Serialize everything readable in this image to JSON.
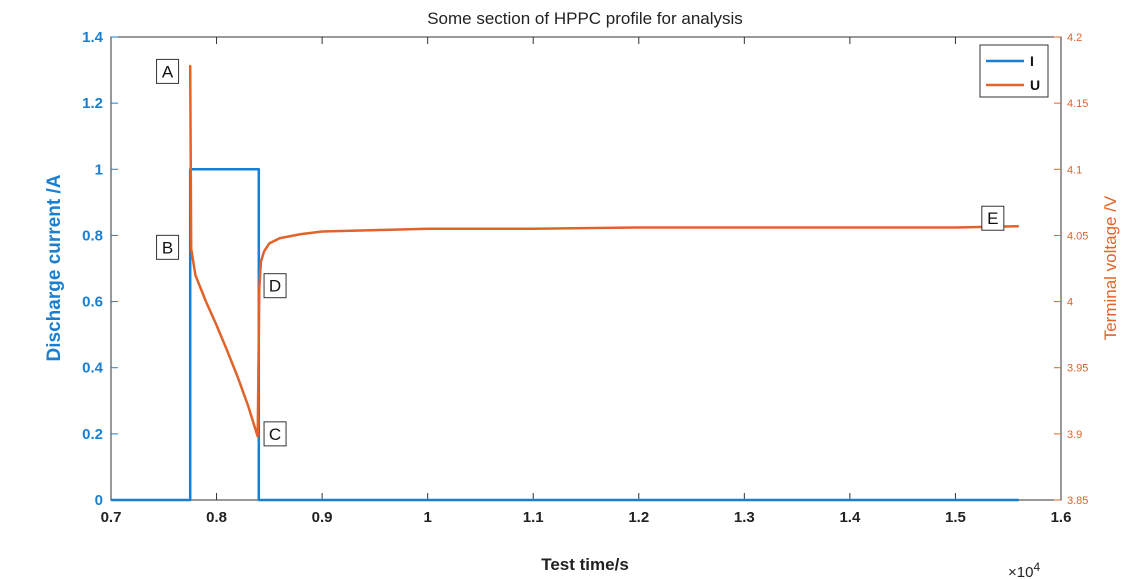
{
  "chart_data": {
    "type": "line",
    "title": "Some section of HPPC profile for analysis",
    "xlabel": "Test time/s",
    "x_multiplier": "×10",
    "x_multiplier_exp": "4",
    "xlim": [
      0.7,
      1.6
    ],
    "x_ticks": [
      "0.7",
      "0.8",
      "0.9",
      "1",
      "1.1",
      "1.2",
      "1.3",
      "1.4",
      "1.5",
      "1.6"
    ],
    "ylabel_left": "Discharge current /A",
    "ylim_left": [
      0,
      1.4
    ],
    "y_ticks_left": [
      "0",
      "0.2",
      "0.4",
      "0.6",
      "0.8",
      "1",
      "1.2",
      "1.4"
    ],
    "ylabel_right": "Terminal voltage /V",
    "ylim_right": [
      3.85,
      4.2
    ],
    "y_ticks_right": [
      "3.85",
      "3.9",
      "3.95",
      "4",
      "4.05",
      "4.1",
      "4.15",
      "4.2"
    ],
    "legend_position": "top-right",
    "grid": false,
    "series": [
      {
        "name": "I",
        "axis": "left",
        "color": "#1a7fd0",
        "x": [
          0.7,
          0.775,
          0.775,
          0.84,
          0.84,
          1.56
        ],
        "y": [
          0,
          0,
          1,
          1,
          0,
          0
        ]
      },
      {
        "name": "U",
        "axis": "right",
        "color": "#e0632a",
        "x": [
          0.774,
          0.775,
          0.776,
          0.78,
          0.79,
          0.8,
          0.81,
          0.82,
          0.83,
          0.839,
          0.8405,
          0.842,
          0.845,
          0.85,
          0.86,
          0.88,
          0.9,
          0.95,
          1.0,
          1.1,
          1.2,
          1.3,
          1.4,
          1.5,
          1.56
        ],
        "y": [
          4.178,
          4.178,
          4.04,
          4.02,
          4.0,
          3.982,
          3.963,
          3.943,
          3.921,
          3.898,
          4.01,
          4.03,
          4.038,
          4.044,
          4.048,
          4.051,
          4.053,
          4.054,
          4.055,
          4.055,
          4.056,
          4.056,
          4.056,
          4.056,
          4.057
        ]
      }
    ],
    "annotations": [
      {
        "label": "A",
        "x": 0.764,
        "y_right": 4.174,
        "box_side": "left"
      },
      {
        "label": "B",
        "x": 0.764,
        "y_right": 4.041,
        "box_side": "left"
      },
      {
        "label": "C",
        "x": 0.845,
        "y_right": 3.9,
        "box_side": "right"
      },
      {
        "label": "D",
        "x": 0.845,
        "y_right": 4.012,
        "box_side": "right"
      },
      {
        "label": "E",
        "x": 1.525,
        "y_right": 4.063,
        "box_side": "right"
      }
    ]
  }
}
